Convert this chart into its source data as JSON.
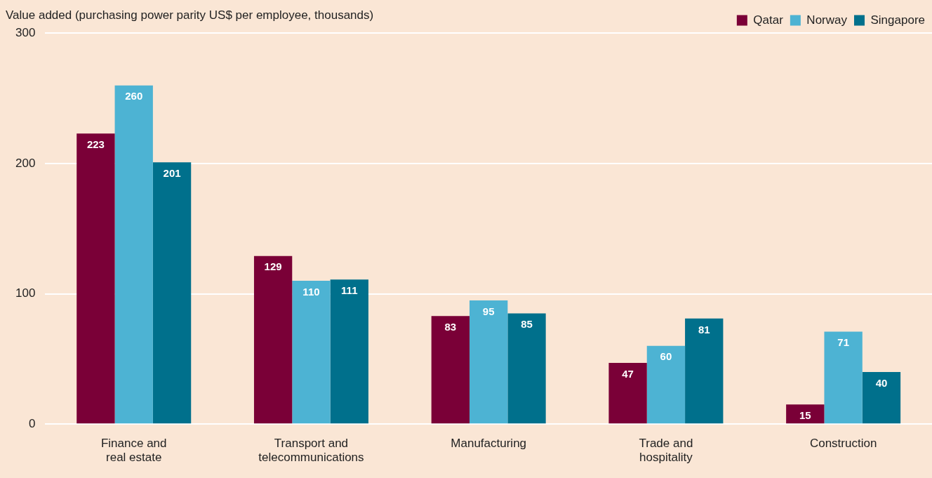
{
  "chart_data": {
    "type": "bar",
    "ylabel": "Value added (purchasing power parity US$ per employee, thousands)",
    "categories": [
      "Finance and real estate",
      "Transport and telecommunications",
      "Manufacturing",
      "Trade and hospitality",
      "Construction"
    ],
    "series": [
      {
        "name": "Qatar",
        "color": "#7a0037",
        "values": [
          223,
          129,
          83,
          47,
          15
        ]
      },
      {
        "name": "Norway",
        "color": "#4db3d3",
        "values": [
          260,
          110,
          95,
          60,
          71
        ]
      },
      {
        "name": "Singapore",
        "color": "#00708c",
        "values": [
          201,
          111,
          85,
          81,
          40
        ]
      }
    ],
    "ylim": [
      0,
      300
    ],
    "yticks": [
      0,
      100,
      200,
      300
    ],
    "grid": "y",
    "legend": "top right",
    "data_labels": true
  }
}
